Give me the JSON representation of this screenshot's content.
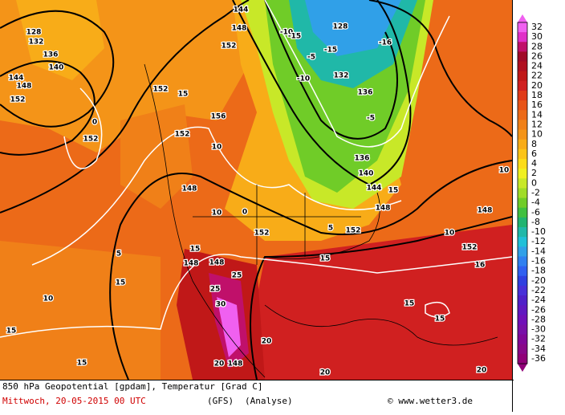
{
  "caption": {
    "line1": "850 hPa Geopotential [gpdam], Temperatur [Grad C]",
    "date": "Mittwoch, 20-05-2015  00 UTC",
    "model": "(GFS)",
    "run": "(Analyse)",
    "credit": "© www.wetter3.de"
  },
  "legend": {
    "labels": [
      32,
      30,
      28,
      26,
      24,
      22,
      20,
      18,
      16,
      14,
      12,
      10,
      8,
      6,
      4,
      2,
      0,
      -2,
      -4,
      -6,
      -8,
      -10,
      -12,
      -14,
      -16,
      -18,
      -20,
      -22,
      -24,
      -26,
      -28,
      -30,
      -32,
      -34,
      -36
    ],
    "colors": [
      "#f060f0",
      "#e030c8",
      "#c0106a",
      "#a00a28",
      "#b01020",
      "#c01818",
      "#d02020",
      "#e03a18",
      "#e85418",
      "#ec6a18",
      "#f08018",
      "#f49418",
      "#f8ac18",
      "#fcc418",
      "#fcdc18",
      "#f0f020",
      "#c8e828",
      "#a0dc28",
      "#70cc28",
      "#40c040",
      "#20b470",
      "#20b8a8",
      "#20c0d8",
      "#30a0e8",
      "#3080f0",
      "#3060f0",
      "#3040e0",
      "#4830d8",
      "#5020c8",
      "#6018c0",
      "#7010b8",
      "#7810a8",
      "#800898",
      "#880888",
      "#900078"
    ]
  },
  "contour_labels": [
    144,
    148,
    152,
    128,
    132,
    136,
    140,
    144,
    148,
    152,
    152,
    152,
    156,
    152,
    148,
    152,
    152,
    148,
    144,
    140,
    136,
    132,
    136,
    128,
    148,
    152,
    148,
    148,
    148,
    10,
    10,
    15,
    15,
    15,
    15,
    15,
    15,
    15,
    10,
    10,
    16,
    10,
    5,
    0,
    0,
    5,
    -5,
    -10,
    -15,
    -16,
    -5,
    25,
    25,
    30,
    20,
    20,
    20,
    20,
    15,
    15,
    -10,
    -15
  ]
}
